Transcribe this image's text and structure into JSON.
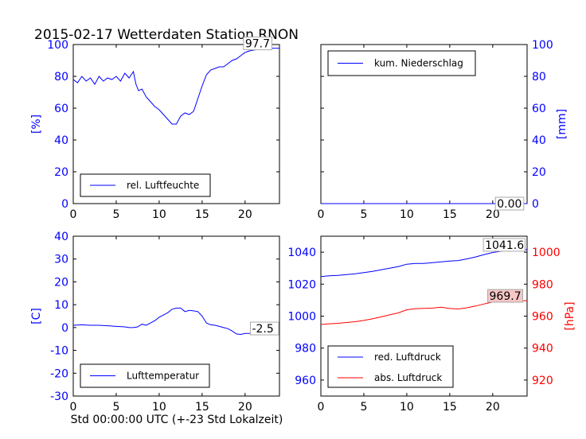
{
  "title": "2015-02-17 Wetterdaten Station RNON",
  "xlabel": "Std 00:00:00 UTC (+-23 Std Lokalzeit)",
  "chart_data": [
    {
      "id": "humidity",
      "type": "line",
      "xlim": [
        0,
        24
      ],
      "ylim": [
        0,
        100
      ],
      "xticks": [
        0,
        5,
        10,
        15,
        20
      ],
      "yticks": [
        0,
        20,
        40,
        60,
        80,
        100
      ],
      "ylabel": "[%]",
      "ylabel_side": "left",
      "axis_color": "#0000ff",
      "legend_position": "lower-left",
      "series": [
        {
          "name": "rel. Luftfeuchte",
          "color": "#0000ff",
          "x": [
            0,
            0.5,
            1,
            1.5,
            2,
            2.5,
            3,
            3.5,
            4,
            4.5,
            5,
            5.5,
            6,
            6.5,
            7,
            7.3,
            7.6,
            8,
            8.5,
            9,
            9.5,
            10,
            10.5,
            11,
            11.5,
            12,
            12.5,
            13,
            13.5,
            14,
            14.5,
            15,
            15.5,
            16,
            16.5,
            17,
            17.5,
            18,
            18.5,
            19,
            19.5,
            20,
            20.5,
            21,
            21.5,
            22,
            22.5,
            23,
            23.5,
            24
          ],
          "values": [
            78,
            76,
            80,
            77,
            79,
            75,
            80,
            77,
            79,
            78,
            80,
            77,
            82,
            79,
            83,
            75,
            71,
            72,
            67,
            64,
            61,
            59,
            56,
            53,
            50,
            50,
            55,
            57,
            56,
            58,
            66,
            74,
            81,
            84,
            85,
            86,
            86,
            88,
            90,
            91,
            93,
            95,
            96,
            96.5,
            97,
            97.3,
            97.5,
            97.6,
            97.7,
            97.7
          ]
        }
      ],
      "annotation": {
        "text": "97.7",
        "x": 20,
        "y": 97.7,
        "bg": "#ffffff"
      }
    },
    {
      "id": "precipitation",
      "type": "line",
      "xlim": [
        0,
        24
      ],
      "ylim": [
        0,
        100
      ],
      "xticks": [
        0,
        5,
        10,
        15,
        20
      ],
      "yticks": [
        0,
        20,
        40,
        60,
        80,
        100
      ],
      "ylabel": "[mm]",
      "ylabel_side": "right",
      "axis_color": "#0000ff",
      "legend_position": "upper-left",
      "series": [
        {
          "name": "kum. Niederschlag",
          "color": "#0000ff",
          "x": [
            0,
            24
          ],
          "values": [
            0,
            0
          ]
        }
      ],
      "annotation": {
        "text": "0.00",
        "x": 20.5,
        "y": 0,
        "bg": "#ffffff"
      }
    },
    {
      "id": "temperature",
      "type": "line",
      "xlim": [
        0,
        24
      ],
      "ylim": [
        -30,
        40
      ],
      "xticks": [
        0,
        5,
        10,
        15,
        20
      ],
      "yticks": [
        -30,
        -20,
        -10,
        0,
        10,
        20,
        30,
        40
      ],
      "ylabel": "[C]",
      "ylabel_side": "left",
      "axis_color": "#0000ff",
      "legend_position": "lower-left",
      "series": [
        {
          "name": "Lufttemperatur",
          "color": "#0000ff",
          "x": [
            0,
            1,
            2,
            3,
            4,
            5,
            6,
            6.5,
            7,
            7.5,
            8,
            8.5,
            9,
            9.5,
            10,
            10.5,
            11,
            11.5,
            12,
            12.5,
            13,
            13.5,
            14,
            14.5,
            15,
            15.5,
            16,
            16.5,
            17,
            17.5,
            18,
            18.5,
            19,
            19.5,
            20,
            20.5,
            21,
            22,
            23,
            24
          ],
          "values": [
            1,
            1.2,
            1,
            1,
            0.8,
            0.5,
            0.3,
            0,
            0,
            0.3,
            1.5,
            1,
            2,
            3,
            4.5,
            5.5,
            6.5,
            8,
            8.5,
            8.5,
            7,
            7.5,
            7.3,
            7,
            5,
            2,
            1.2,
            1,
            0.5,
            0,
            -0.5,
            -1.5,
            -2.8,
            -3,
            -2.6,
            -2.6,
            -2.5,
            -2.5,
            -2.5,
            -2.5
          ]
        }
      ],
      "annotation": {
        "text": "-2.5",
        "x": 20.8,
        "y": -2.5,
        "bg": "#ffffff"
      }
    },
    {
      "id": "pressure",
      "type": "line",
      "xlim": [
        0,
        24
      ],
      "ylim": [
        950,
        1050
      ],
      "ylim_right": [
        910,
        1010
      ],
      "xticks": [
        0,
        5,
        10,
        15,
        20
      ],
      "yticks": [
        960,
        980,
        1000,
        1020,
        1040
      ],
      "yticks_right": [
        920,
        940,
        960,
        980,
        1000
      ],
      "ylabel": "",
      "ylabel_right": "[hPa]",
      "axis_color": "#0000ff",
      "axis_color_right": "#ff0000",
      "legend_position": "lower-left",
      "series": [
        {
          "name": "red. Luftdruck",
          "color": "#0000ff",
          "axis": "left",
          "x": [
            0,
            1,
            2,
            3,
            4,
            5,
            6,
            7,
            8,
            9,
            10,
            11,
            12,
            13,
            14,
            15,
            16,
            17,
            18,
            19,
            20,
            21,
            22,
            23,
            24
          ],
          "values": [
            1024.8,
            1025.2,
            1025.5,
            1026,
            1026.5,
            1027.2,
            1028,
            1029,
            1030,
            1031,
            1032.5,
            1033,
            1033,
            1033.5,
            1034,
            1034.5,
            1034.8,
            1035.8,
            1037,
            1038.5,
            1039.8,
            1040.6,
            1041.2,
            1041.5,
            1041.6
          ]
        },
        {
          "name": "abs. Luftdruck",
          "color": "#ff0000",
          "axis": "right",
          "x": [
            0,
            1,
            2,
            3,
            4,
            5,
            6,
            7,
            8,
            9,
            10,
            11,
            12,
            13,
            14,
            15,
            16,
            17,
            18,
            19,
            20,
            21,
            22,
            23,
            24
          ],
          "values": [
            954.8,
            955.2,
            955.5,
            956,
            956.5,
            957.3,
            958.3,
            959.5,
            960.8,
            962,
            964,
            964.7,
            964.9,
            965,
            965.6,
            964.8,
            964.5,
            965.2,
            966.3,
            967.6,
            968.8,
            969.2,
            969.5,
            969.6,
            969.7
          ]
        }
      ],
      "annotations": [
        {
          "text": "1041.6",
          "x": 19.1,
          "y": 1041.6,
          "axis": "left",
          "bg": "#ffffff"
        },
        {
          "text": "969.7",
          "x": 19.6,
          "y": 969.7,
          "axis": "right",
          "bg": "#f7c6c6"
        }
      ]
    }
  ]
}
